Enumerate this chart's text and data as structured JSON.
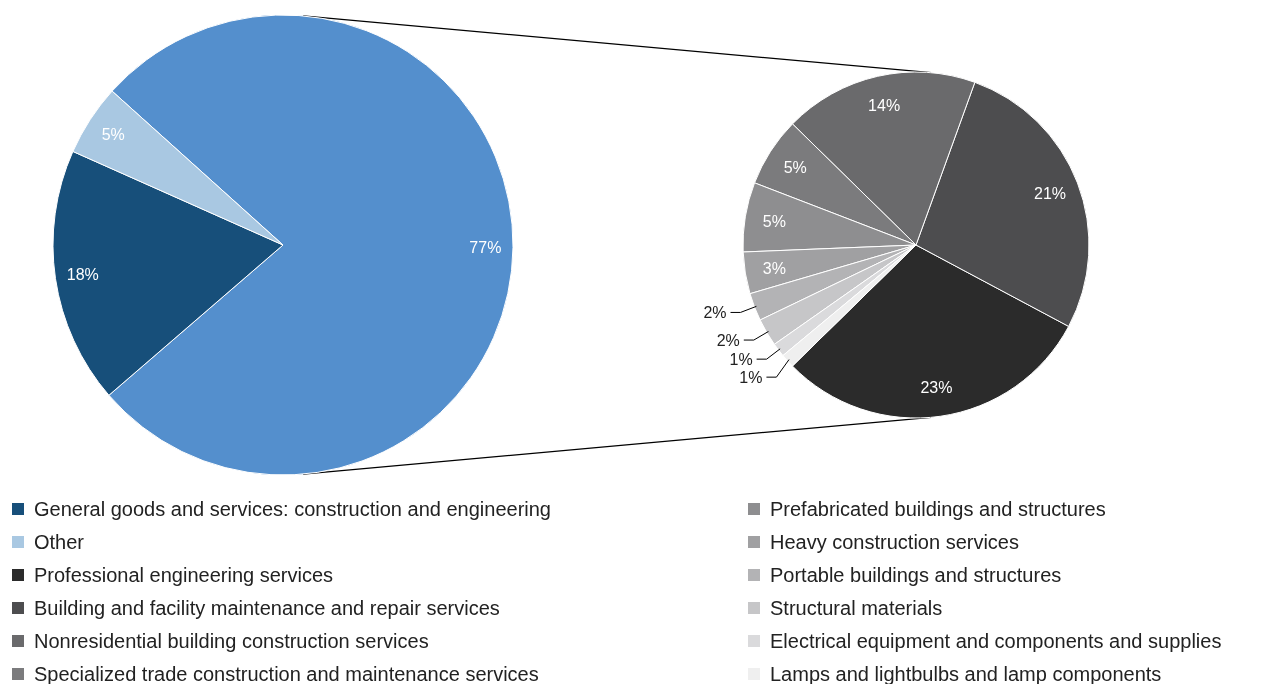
{
  "chart_data": [
    {
      "type": "pie",
      "categories": [
        null,
        "General goods and services: construction and engineering",
        "Other"
      ],
      "values": [
        77,
        18,
        5
      ],
      "colors": [
        "#548fcd",
        "#174f7a",
        "#a9c8e2"
      ],
      "value_labels": [
        "77%",
        "18%",
        "5%"
      ],
      "legend": "bottom"
    },
    {
      "type": "pie",
      "categories": [
        "Professional engineering services",
        "Building and facility maintenance and repair services",
        "Nonresidential building construction services",
        "Specialized trade construction and maintenance services",
        "Prefabricated buildings and structures",
        "Heavy construction services",
        "Portable buildings and structures",
        "Structural materials",
        "Electrical equipment and components and supplies",
        "Lamps and lightbulbs and lamp components"
      ],
      "values": [
        23,
        21,
        14,
        5,
        5,
        3,
        2,
        2,
        1,
        1
      ],
      "colors": [
        "#2b2b2b",
        "#4d4d4f",
        "#6a6a6c",
        "#7b7b7d",
        "#8e8e90",
        "#a0a0a2",
        "#b3b3b5",
        "#c6c6c8",
        "#dadadc",
        "#efefef"
      ],
      "value_labels": [
        "23%",
        "21%",
        "14%",
        "5%",
        "5%",
        "3%",
        "2%",
        "2%",
        "1%",
        "1%"
      ],
      "legend": "bottom"
    }
  ]
}
